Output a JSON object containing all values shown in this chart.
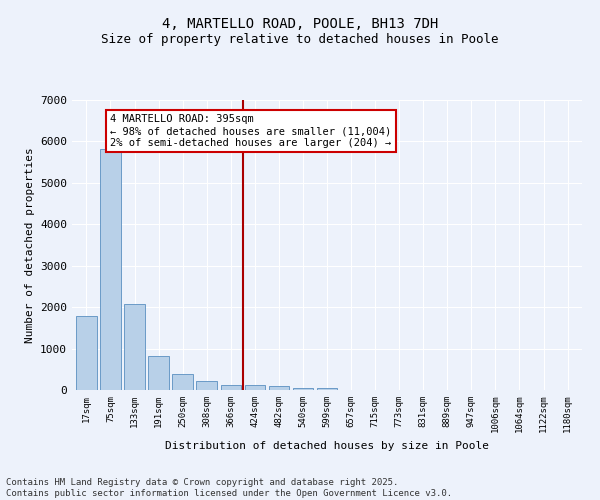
{
  "title": "4, MARTELLO ROAD, POOLE, BH13 7DH",
  "subtitle": "Size of property relative to detached houses in Poole",
  "xlabel": "Distribution of detached houses by size in Poole",
  "ylabel": "Number of detached properties",
  "categories": [
    "17sqm",
    "75sqm",
    "133sqm",
    "191sqm",
    "250sqm",
    "308sqm",
    "366sqm",
    "424sqm",
    "482sqm",
    "540sqm",
    "599sqm",
    "657sqm",
    "715sqm",
    "773sqm",
    "831sqm",
    "889sqm",
    "947sqm",
    "1006sqm",
    "1064sqm",
    "1122sqm",
    "1180sqm"
  ],
  "values": [
    1780,
    5820,
    2080,
    820,
    380,
    220,
    110,
    110,
    90,
    60,
    50,
    0,
    0,
    0,
    0,
    0,
    0,
    0,
    0,
    0,
    0
  ],
  "bar_color": "#b8d0e8",
  "bar_edge_color": "#5a8fc0",
  "vline_color": "#aa0000",
  "annotation_text": "4 MARTELLO ROAD: 395sqm\n← 98% of detached houses are smaller (11,004)\n2% of semi-detached houses are larger (204) →",
  "annotation_box_color": "#ffffff",
  "annotation_box_edge": "#cc0000",
  "ylim": [
    0,
    7000
  ],
  "yticks": [
    0,
    1000,
    2000,
    3000,
    4000,
    5000,
    6000,
    7000
  ],
  "background_color": "#edf2fb",
  "grid_color": "#ffffff",
  "footer_line1": "Contains HM Land Registry data © Crown copyright and database right 2025.",
  "footer_line2": "Contains public sector information licensed under the Open Government Licence v3.0."
}
